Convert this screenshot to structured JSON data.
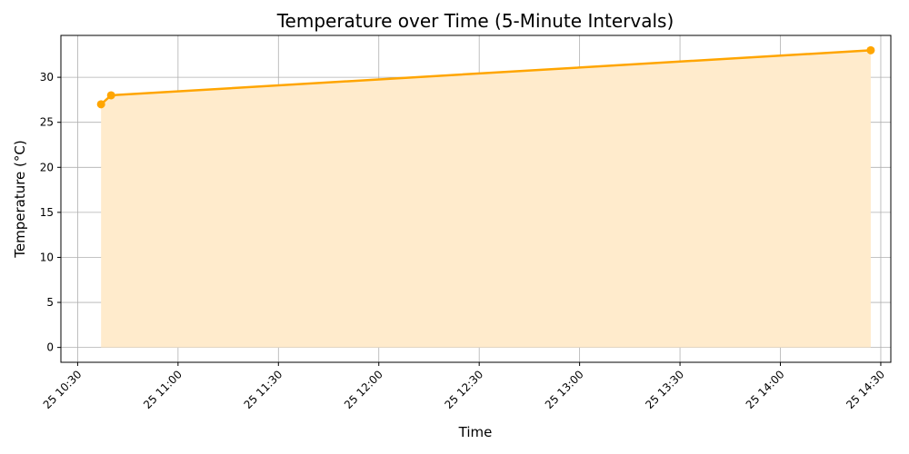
{
  "chart_data": {
    "type": "area",
    "title": "Temperature over Time (5-Minute Intervals)",
    "xlabel": "Time",
    "ylabel": "Temperature (°C)",
    "x_tick_labels": [
      "25 10:30",
      "25 11:00",
      "25 11:30",
      "25 12:00",
      "25 12:30",
      "25 13:00",
      "25 13:30",
      "25 14:00",
      "25 14:30"
    ],
    "x_ticks": [
      "10:30",
      "11:00",
      "11:30",
      "12:00",
      "12:30",
      "13:00",
      "13:30",
      "14:00",
      "14:30"
    ],
    "y_ticks": [
      0,
      5,
      10,
      15,
      20,
      25,
      30
    ],
    "xlim": [
      "10:25",
      "14:33"
    ],
    "ylim": [
      -1.65,
      34.65
    ],
    "grid": true,
    "series": [
      {
        "x": [
          "10:37",
          "10:40",
          "14:27"
        ],
        "values": [
          27,
          28,
          33
        ],
        "line_color": "#ffa500",
        "fill_color": "#ffebcc"
      }
    ]
  }
}
